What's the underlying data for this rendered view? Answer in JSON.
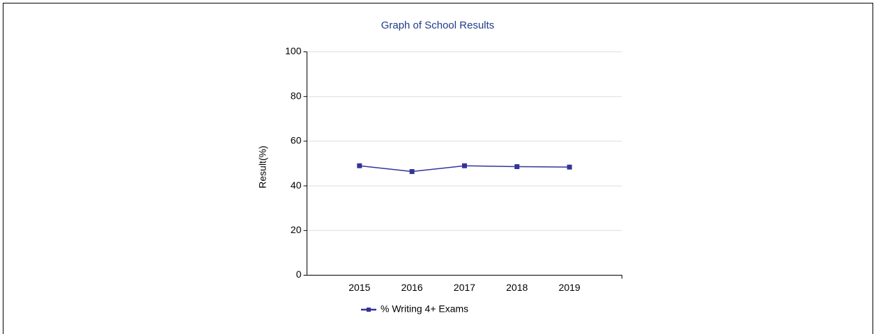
{
  "chart_data": {
    "type": "line",
    "title": "Graph of School Results",
    "y_label": "Result(%)",
    "categories": [
      "2015",
      "2016",
      "2017",
      "2018",
      "2019"
    ],
    "series": [
      {
        "name": "% Writing 4+ Exams",
        "color": "#333399",
        "values": [
          49,
          46.4,
          49,
          48.6,
          48.4
        ]
      }
    ],
    "ylim": [
      0,
      100
    ],
    "yticks": [
      0,
      20,
      40,
      60,
      80,
      100
    ],
    "grid": true,
    "legend": "bottom"
  }
}
